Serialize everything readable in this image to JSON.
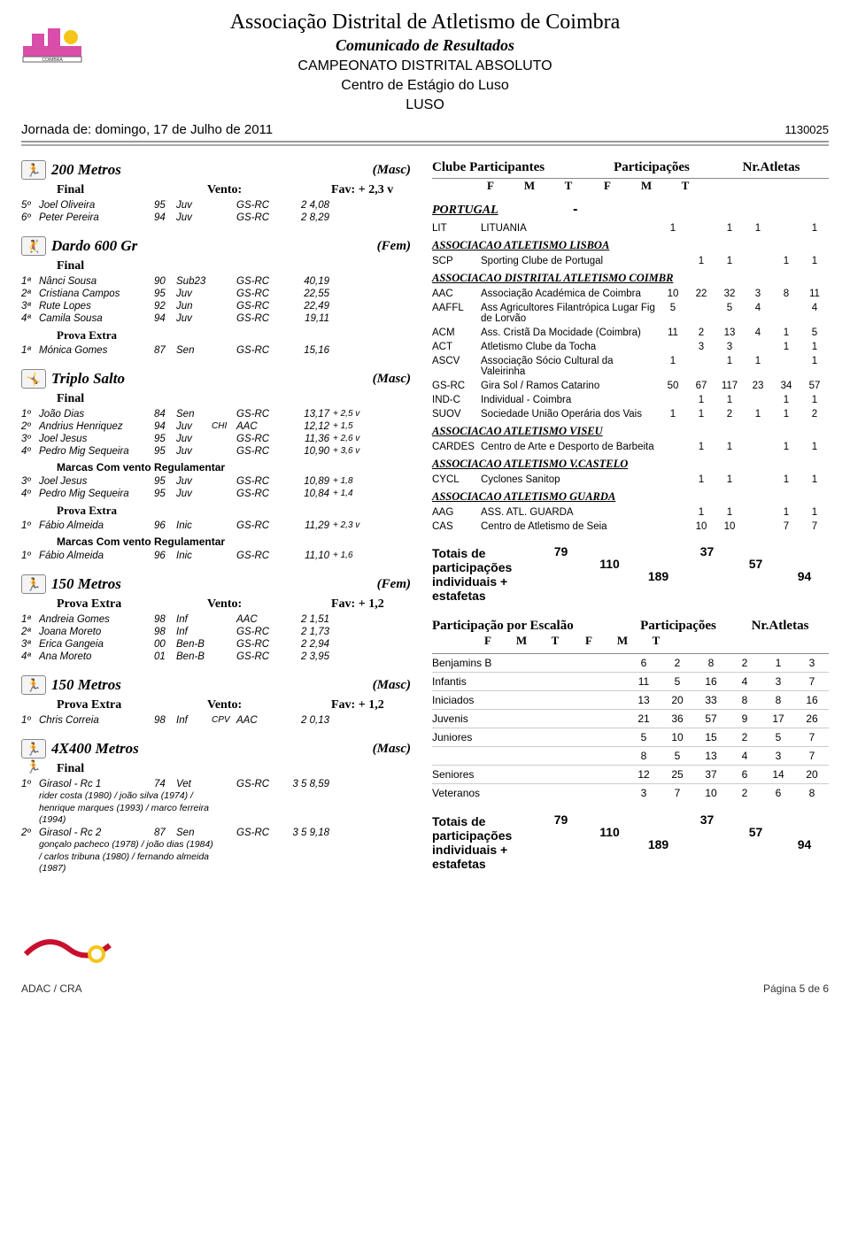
{
  "header": {
    "org": "Associação Distrital de Atletismo de Coimbra",
    "sub1": "Comunicado de Resultados",
    "sub2": "CAMPEONATO DISTRITAL ABSOLUTO",
    "sub3": "Centro de Estágio do Luso",
    "sub4": "LUSO",
    "jornada_label": "Jornada de:",
    "jornada_date": "domingo, 17 de Julho de 2011",
    "doc_id": "1130025"
  },
  "events": {
    "e200m": {
      "title": "200 Metros",
      "gender": "(Masc)",
      "final_label": "Final",
      "vento_label": "Vento:",
      "fav": "Fav: + 2,3  v",
      "rows": [
        {
          "pos": "5º",
          "name": "Joel Oliveira",
          "yr": "95",
          "cat": "Juv",
          "nat": "",
          "club": "GS-RC",
          "mark": "2 4,08",
          "wind": ""
        },
        {
          "pos": "6º",
          "name": "Peter Pereira",
          "yr": "94",
          "cat": "Juv",
          "nat": "",
          "club": "GS-RC",
          "mark": "2 8,29",
          "wind": ""
        }
      ]
    },
    "dardo": {
      "title": "Dardo 600 Gr",
      "gender": "(Fem)",
      "final_label": "Final",
      "rows": [
        {
          "pos": "1ª",
          "name": "Nânci Sousa",
          "yr": "90",
          "cat": "Sub23",
          "nat": "",
          "club": "GS-RC",
          "mark": "40,19",
          "wind": ""
        },
        {
          "pos": "2ª",
          "name": "Cristiana Campos",
          "yr": "95",
          "cat": "Juv",
          "nat": "",
          "club": "GS-RC",
          "mark": "22,55",
          "wind": ""
        },
        {
          "pos": "3ª",
          "name": "Rute Lopes",
          "yr": "92",
          "cat": "Jun",
          "nat": "",
          "club": "GS-RC",
          "mark": "22,49",
          "wind": ""
        },
        {
          "pos": "4ª",
          "name": "Camila Sousa",
          "yr": "94",
          "cat": "Juv",
          "nat": "",
          "club": "GS-RC",
          "mark": "19,11",
          "wind": ""
        }
      ],
      "extra_label": "Prova Extra",
      "extra_rows": [
        {
          "pos": "1ª",
          "name": "Mónica Gomes",
          "yr": "87",
          "cat": "Sen",
          "nat": "",
          "club": "GS-RC",
          "mark": "15,16",
          "wind": ""
        }
      ]
    },
    "triplo": {
      "title": "Triplo Salto",
      "gender": "(Masc)",
      "final_label": "Final",
      "rows": [
        {
          "pos": "1º",
          "name": "João Dias",
          "yr": "84",
          "cat": "Sen",
          "nat": "",
          "club": "GS-RC",
          "mark": "13,17",
          "wind": "+ 2,5 v"
        },
        {
          "pos": "2º",
          "name": "Andrius Henriquez",
          "yr": "94",
          "cat": "Juv",
          "nat": "CHI",
          "club": "AAC",
          "mark": "12,12",
          "wind": "+ 1,5"
        },
        {
          "pos": "3º",
          "name": "Joel Jesus",
          "yr": "95",
          "cat": "Juv",
          "nat": "",
          "club": "GS-RC",
          "mark": "11,36",
          "wind": "+ 2,6 v"
        },
        {
          "pos": "4º",
          "name": "Pedro Mig Sequeira",
          "yr": "95",
          "cat": "Juv",
          "nat": "",
          "club": "GS-RC",
          "mark": "10,90",
          "wind": "+ 3,6 v"
        }
      ],
      "marcas_label": "Marcas Com vento Regulamentar",
      "reg_rows": [
        {
          "pos": "3º",
          "name": "Joel Jesus",
          "yr": "95",
          "cat": "Juv",
          "nat": "",
          "club": "GS-RC",
          "mark": "10,89",
          "wind": "+ 1,8"
        },
        {
          "pos": "4º",
          "name": "Pedro Mig Sequeira",
          "yr": "95",
          "cat": "Juv",
          "nat": "",
          "club": "GS-RC",
          "mark": "10,84",
          "wind": "+ 1,4"
        }
      ],
      "extra_label": "Prova Extra",
      "extra_rows": [
        {
          "pos": "1º",
          "name": "Fábio Almeida",
          "yr": "96",
          "cat": "Inic",
          "nat": "",
          "club": "GS-RC",
          "mark": "11,29",
          "wind": "+ 2,3 v"
        }
      ],
      "marcas_label2": "Marcas Com vento Regulamentar",
      "reg2_rows": [
        {
          "pos": "1º",
          "name": "Fábio Almeida",
          "yr": "96",
          "cat": "Inic",
          "nat": "",
          "club": "GS-RC",
          "mark": "11,10",
          "wind": "+ 1,6"
        }
      ]
    },
    "m150f": {
      "title": "150 Metros",
      "gender": "(Fem)",
      "extra_label": "Prova Extra",
      "vento_label": "Vento:",
      "fav": "Fav: + 1,2",
      "rows": [
        {
          "pos": "1ª",
          "name": "Andreia Gomes",
          "yr": "98",
          "cat": "Inf",
          "nat": "",
          "club": "AAC",
          "mark": "2 1,51",
          "wind": ""
        },
        {
          "pos": "2ª",
          "name": "Joana Moreto",
          "yr": "98",
          "cat": "Inf",
          "nat": "",
          "club": "GS-RC",
          "mark": "2 1,73",
          "wind": ""
        },
        {
          "pos": "3ª",
          "name": "Érica Gangeia",
          "yr": "00",
          "cat": "Ben-B",
          "nat": "",
          "club": "GS-RC",
          "mark": "2 2,94",
          "wind": ""
        },
        {
          "pos": "4ª",
          "name": "Ana Moreto",
          "yr": "01",
          "cat": "Ben-B",
          "nat": "",
          "club": "GS-RC",
          "mark": "2 3,95",
          "wind": ""
        }
      ]
    },
    "m150m": {
      "title": "150 Metros",
      "gender": "(Masc)",
      "extra_label": "Prova Extra",
      "vento_label": "Vento:",
      "fav": "Fav: + 1,2",
      "rows": [
        {
          "pos": "1º",
          "name": "Chris Correia",
          "yr": "98",
          "cat": "Inf",
          "nat": "CPV",
          "club": "AAC",
          "mark": "2 0,13",
          "wind": ""
        }
      ]
    },
    "r4x400": {
      "title": "4X400 Metros",
      "gender": "(Masc)",
      "final_label": "Final",
      "rows": [
        {
          "pos": "1º",
          "name": "Girasol - Rc 1",
          "yr": "74",
          "cat": "Vet",
          "nat": "",
          "club": "GS-RC",
          "mark": "3 5 8,59",
          "wind": "",
          "team": "rider costa (1980) / joão silva (1974) / henrique marques (1993) / marco ferreira (1994)"
        },
        {
          "pos": "2º",
          "name": "Girasol - Rc 2",
          "yr": "87",
          "cat": "Sen",
          "nat": "",
          "club": "GS-RC",
          "mark": "3 5 9,18",
          "wind": "",
          "team": "gonçalo pacheco (1978) / joão dias (1984) / carlos tribuna (1980) / fernando almeida (1987)"
        }
      ]
    }
  },
  "right": {
    "clube_label": "Clube Participantes",
    "part_label": "Participações",
    "natl_label": "Nr.Atletas",
    "fm_labels": [
      "F",
      "M",
      "T",
      "F",
      "M",
      "T"
    ],
    "country": "PORTUGAL",
    "country_dash": "-",
    "groups": [
      {
        "title": "",
        "clubs": [
          {
            "code": "LIT",
            "cname": "LITUANIA",
            "n": [
              "1",
              "",
              "1",
              "1",
              "",
              "1"
            ]
          }
        ]
      },
      {
        "title": "ASSOCIACAO ATLETISMO LISBOA",
        "clubs": [
          {
            "code": "SCP",
            "cname": "Sporting Clube de Portugal",
            "n": [
              "",
              "1",
              "1",
              "",
              "1",
              "1"
            ]
          }
        ]
      },
      {
        "title": "ASSOCIACAO DISTRITAL ATLETISMO COIMBR",
        "clubs": [
          {
            "code": "AAC",
            "cname": "Associação Académica de Coimbra",
            "n": [
              "10",
              "22",
              "32",
              "3",
              "8",
              "11"
            ]
          },
          {
            "code": "AAFFL",
            "cname": "Ass Agricultores Filantrópica Lugar Fig de Lorvão",
            "n": [
              "5",
              "",
              "5",
              "4",
              "",
              "4"
            ]
          },
          {
            "code": "ACM",
            "cname": "Ass. Cristã Da Mocidade (Coimbra)",
            "n": [
              "11",
              "2",
              "13",
              "4",
              "1",
              "5"
            ]
          },
          {
            "code": "ACT",
            "cname": "Atletismo Clube da Tocha",
            "n": [
              "",
              "3",
              "3",
              "",
              "1",
              "1"
            ]
          },
          {
            "code": "ASCV",
            "cname": "Associação Sócio Cultural da Valeirinha",
            "n": [
              "1",
              "",
              "1",
              "1",
              "",
              "1"
            ]
          },
          {
            "code": "GS-RC",
            "cname": "Gira Sol / Ramos Catarino",
            "n": [
              "50",
              "67",
              "117",
              "23",
              "34",
              "57"
            ]
          },
          {
            "code": "IND-C",
            "cname": "Individual - Coimbra",
            "n": [
              "",
              "1",
              "1",
              "",
              "1",
              "1"
            ]
          },
          {
            "code": "SUOV",
            "cname": "Sociedade União Operária dos Vais",
            "n": [
              "1",
              "1",
              "2",
              "1",
              "1",
              "2"
            ]
          }
        ]
      },
      {
        "title": "ASSOCIACAO ATLETISMO VISEU",
        "clubs": [
          {
            "code": "CARDES",
            "cname": "Centro de Arte e Desporto de Barbeita",
            "n": [
              "",
              "1",
              "1",
              "",
              "1",
              "1"
            ]
          }
        ]
      },
      {
        "title": "ASSOCIACAO ATLETISMO V.CASTELO",
        "clubs": [
          {
            "code": "CYCL",
            "cname": "Cyclones Sanitop",
            "n": [
              "",
              "1",
              "1",
              "",
              "1",
              "1"
            ]
          }
        ]
      },
      {
        "title": "ASSOCIACAO ATLETISMO GUARDA",
        "clubs": [
          {
            "code": "AAG",
            "cname": "ASS. ATL. GUARDA",
            "n": [
              "",
              "1",
              "1",
              "",
              "1",
              "1"
            ]
          },
          {
            "code": "CAS",
            "cname": "Centro de Atletismo de Seia",
            "n": [
              "",
              "10",
              "10",
              "",
              "7",
              "7"
            ]
          }
        ]
      }
    ],
    "totals_label": "Totais de participações individuais + estafetas",
    "totals_vals": [
      "79",
      "110",
      "189",
      "37",
      "57",
      "94"
    ],
    "escalao_label": "Participação por Escalão",
    "escalao_rows": [
      {
        "en": "Benjamins B",
        "v": [
          "6",
          "2",
          "8",
          "2",
          "1",
          "3"
        ]
      },
      {
        "en": "Infantis",
        "v": [
          "11",
          "5",
          "16",
          "4",
          "3",
          "7"
        ]
      },
      {
        "en": "Iniciados",
        "v": [
          "13",
          "20",
          "33",
          "8",
          "8",
          "16"
        ]
      },
      {
        "en": "Juvenis",
        "v": [
          "21",
          "36",
          "57",
          "9",
          "17",
          "26"
        ]
      },
      {
        "en": "Juniores",
        "v": [
          "5",
          "10",
          "15",
          "2",
          "5",
          "7"
        ]
      },
      {
        "en": "",
        "v": [
          "8",
          "5",
          "13",
          "4",
          "3",
          "7"
        ]
      },
      {
        "en": "Seniores",
        "v": [
          "12",
          "25",
          "37",
          "6",
          "14",
          "20"
        ]
      },
      {
        "en": "Veteranos",
        "v": [
          "3",
          "7",
          "10",
          "2",
          "6",
          "8"
        ]
      }
    ],
    "totals2_vals": [
      "79",
      "110",
      "189",
      "37",
      "57",
      "94"
    ]
  },
  "footer": {
    "left": "ADAC / CRA",
    "right": "Página 5 de 6"
  },
  "colors": {
    "text": "#000000",
    "line": "#999999",
    "bg": "#ffffff",
    "logo_pink": "#d84ea8",
    "logo_yellow": "#f5c518"
  }
}
